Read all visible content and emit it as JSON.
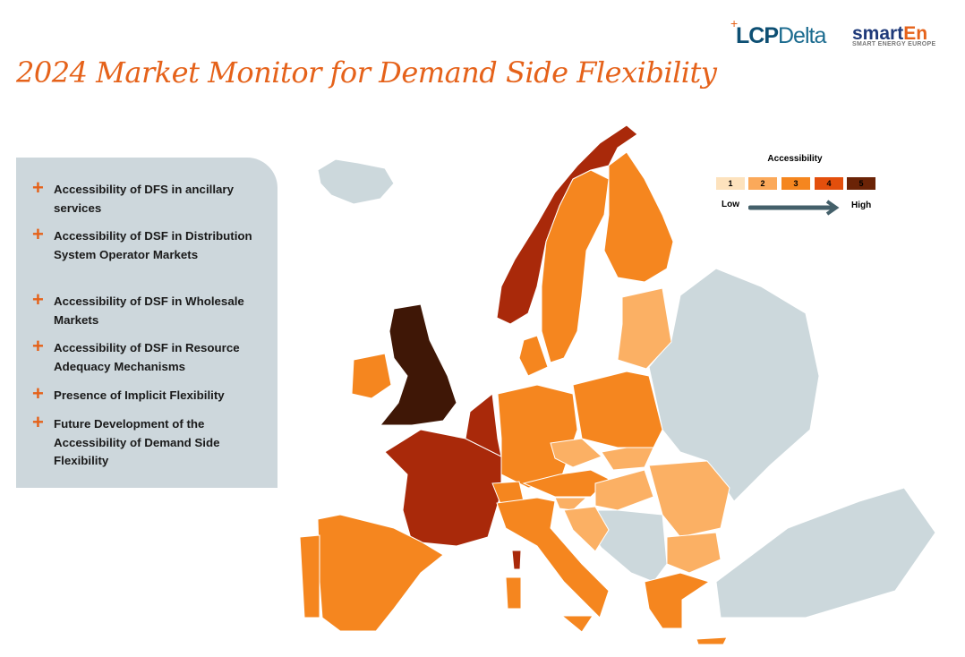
{
  "header": {
    "title": "2024 Market Monitor for Demand Side Flexibility",
    "logo_lcp": "LCPDelta",
    "logo_smarten": "smartEn",
    "logo_smarten_sub": "SMART ENERGY EUROPE"
  },
  "sidebar": {
    "items": [
      {
        "label": "Accessibility of DFS in ancillary services"
      },
      {
        "label": "Accessibility of DSF in Distribution System Operator Markets"
      },
      {
        "label": "Accessibility of DSF in Wholesale Markets"
      },
      {
        "label": "Accessibility of DSF in Resource Adequacy Mechanisms"
      },
      {
        "label": "Presence of Implicit Flexibility"
      },
      {
        "label": "Future Development of the Accessibility of Demand Side Flexibility"
      }
    ]
  },
  "legend": {
    "title": "Accessibility",
    "levels": [
      "1",
      "2",
      "3",
      "4",
      "5"
    ],
    "low": "Low",
    "high": "High",
    "colors": [
      "#fde2bd",
      "#fba95a",
      "#f5861f",
      "#e34f0c",
      "#6b2306"
    ]
  },
  "map_colors": {
    "none": "#ccd8dc",
    "2": "#fbb064",
    "3": "#f5861f",
    "4": "#a9290a",
    "5": "#3f1706"
  },
  "countries": {
    "Norway": 4,
    "Sweden": 3,
    "Finland": 3,
    "United Kingdom": 5,
    "Ireland": 3,
    "France": 4,
    "Belgium": 4,
    "Netherlands": 4,
    "Denmark": 3,
    "Germany": 3,
    "Poland": 3,
    "Baltics": 2,
    "Czechia": 2,
    "Slovakia": 2,
    "Austria": 3,
    "Switzerland": 3,
    "Hungary": 2,
    "Slovenia": 2,
    "Croatia": 2,
    "Romania": 2,
    "Bulgaria": 2,
    "Greece": 3,
    "Italy": 3,
    "Spain": 3,
    "Portugal": 3
  }
}
